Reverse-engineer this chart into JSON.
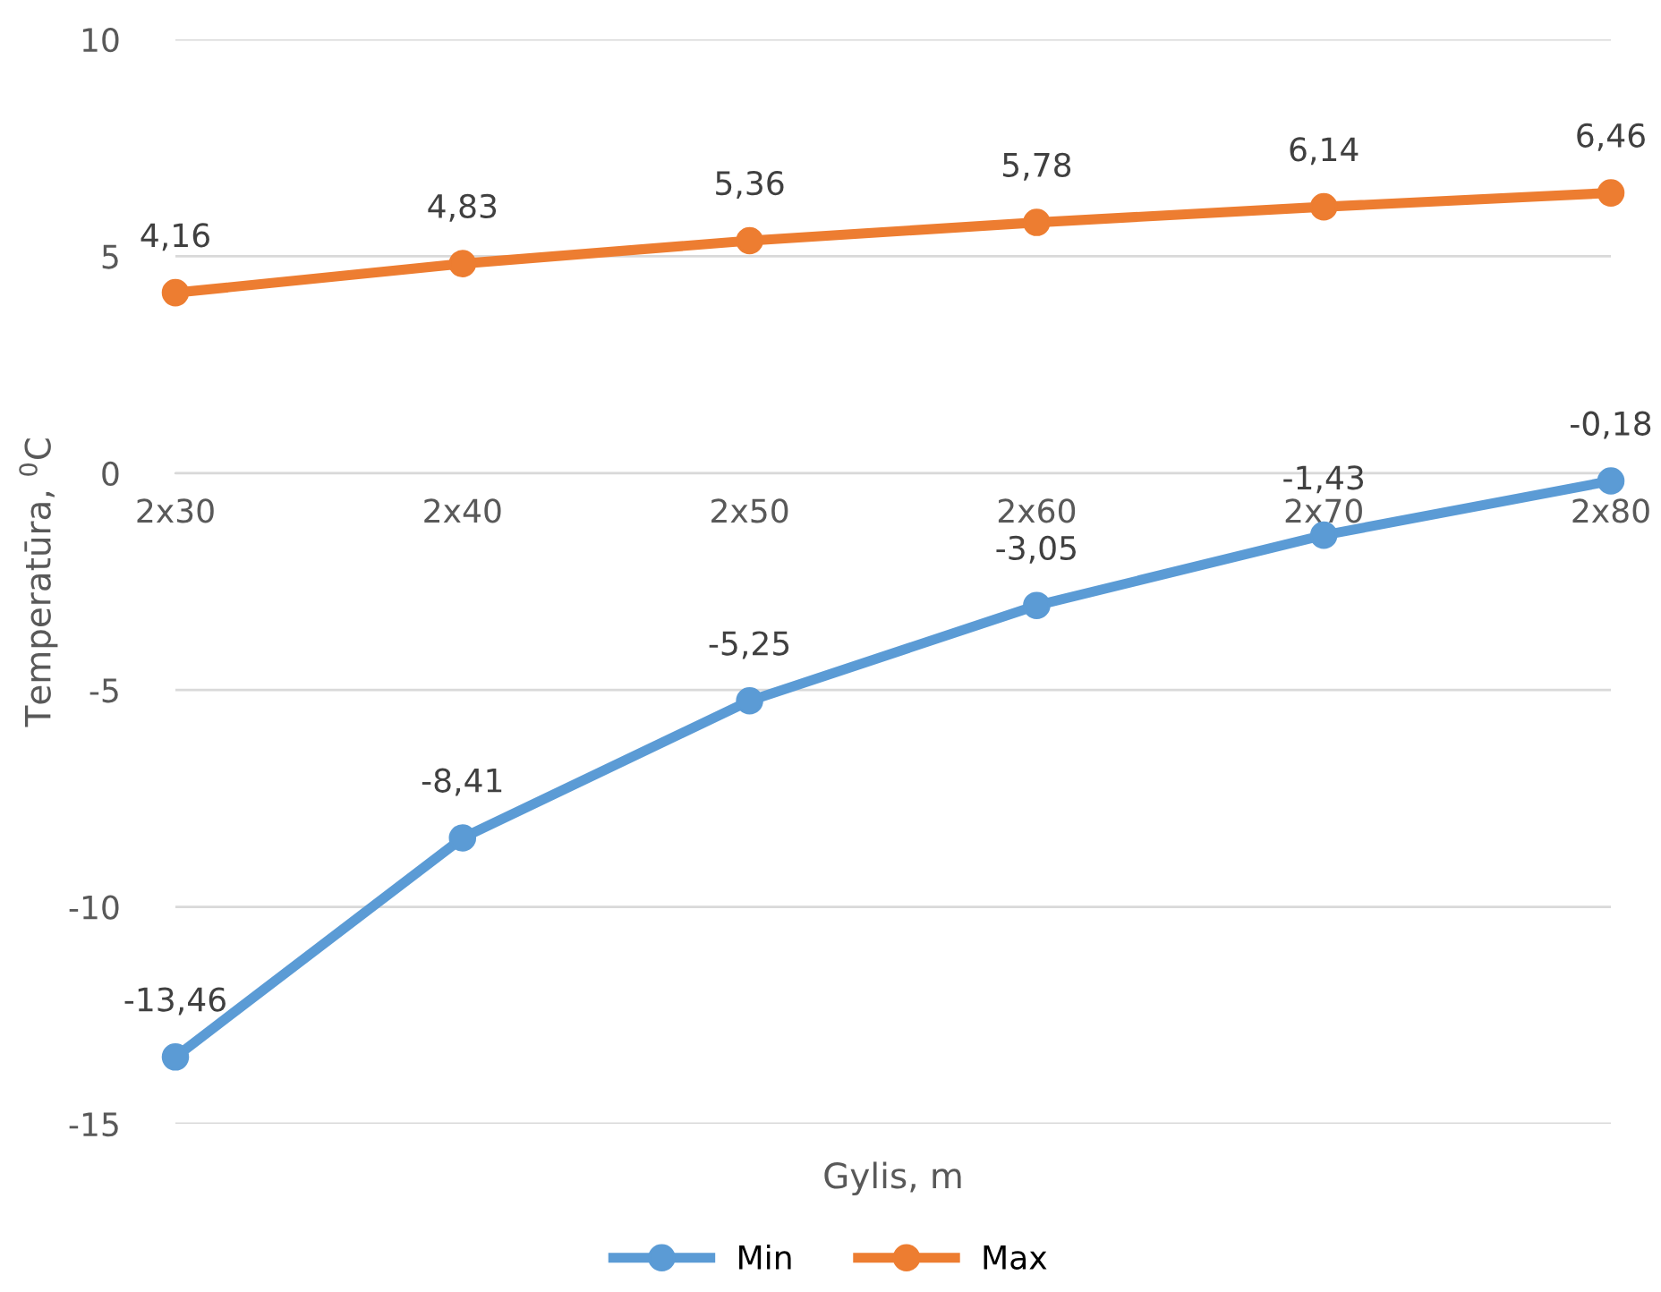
{
  "chart_data": {
    "type": "line",
    "xlabel": "Gylis, m",
    "ylabel": "Temperatūra, $^{0}$C",
    "categories": [
      "2x30",
      "2x40",
      "2x50",
      "2x60",
      "2x70",
      "2x80"
    ],
    "series": [
      {
        "name": "Min",
        "color": "#5b9bd5",
        "values": [
          -13.46,
          -8.41,
          -5.25,
          -3.05,
          -1.43,
          -0.18
        ],
        "value_labels": [
          "-13,46",
          "-8,41",
          "-5,25",
          "-3,05",
          "-1,43",
          "-0,18"
        ]
      },
      {
        "name": "Max",
        "color": "#ed7d31",
        "values": [
          4.16,
          4.83,
          5.36,
          5.78,
          6.14,
          6.46
        ],
        "value_labels": [
          "4,16",
          "4,83",
          "5,36",
          "5,78",
          "6,14",
          "6,46"
        ]
      }
    ],
    "ylim": [
      -15,
      10
    ],
    "yticks": [
      -15,
      -10,
      -5,
      0,
      5,
      10
    ],
    "grid": "y",
    "legend": "bottom",
    "marker": "circle",
    "line_style": "solid"
  }
}
